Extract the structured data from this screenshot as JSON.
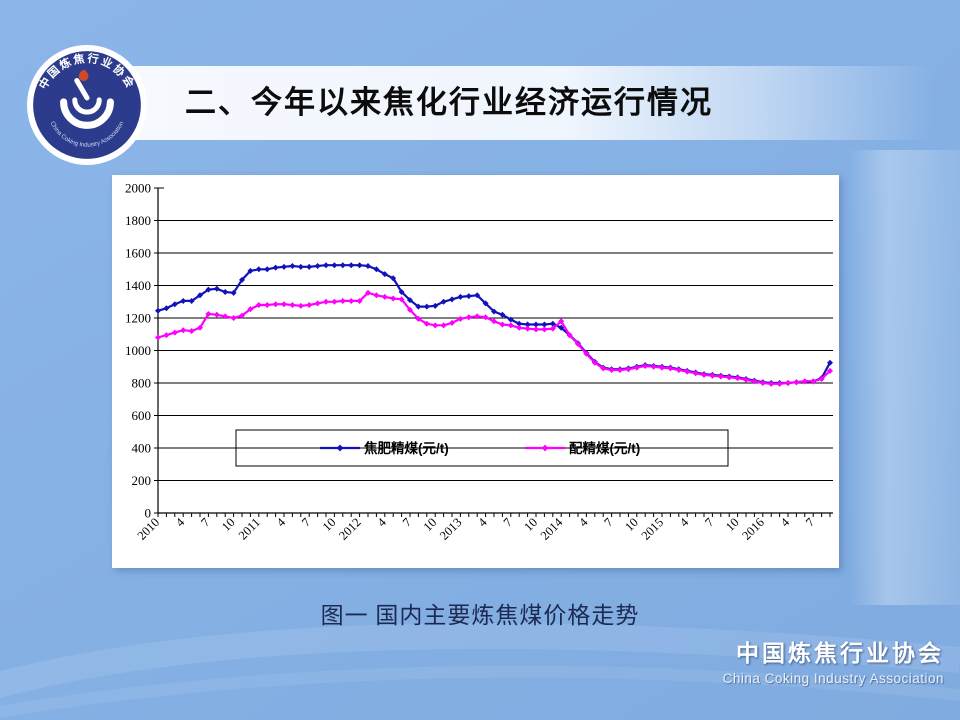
{
  "slide": {
    "title": "二、今年以来焦化行业经济运行情况",
    "caption": "图一      国内主要炼焦煤价格走势",
    "footer_cn": "中国炼焦行业协会",
    "footer_en": "China Coking Industry Association",
    "logo": {
      "text_top": "中国炼焦行业协会",
      "text_bottom": "China Coking Industry Association"
    }
  },
  "colors": {
    "slide_bg": "#85b0e4",
    "logo_navy": "#2c3b8c",
    "series_jiaofei_blue": "#1212bb",
    "series_peijing_magenta": "#ff00ff",
    "axis_black": "#000000",
    "caption_navy": "#1d2950"
  },
  "chart_data": {
    "type": "line",
    "title": "",
    "xlabel": "",
    "ylabel": "",
    "ylim": [
      0,
      2000
    ],
    "y_tick_step": 200,
    "y_tick_labels": [
      "0",
      "200",
      "400",
      "600",
      "800",
      "1000",
      "1200",
      "1400",
      "1600",
      "1800",
      "2000"
    ],
    "grid": true,
    "legend_position": "inside-bottom",
    "x_unit": "month",
    "x_months_per_label": 3,
    "x_tick_labels": [
      "2010",
      "4",
      "7",
      "10",
      "2011",
      "4",
      "7",
      "10",
      "2012",
      "4",
      "7",
      "10",
      "2013",
      "4",
      "7",
      "10",
      "2014",
      "4",
      "7",
      "10",
      "2015",
      "4",
      "7",
      "10",
      "2016",
      "4",
      "7"
    ],
    "series": [
      {
        "name": "焦肥精煤(元/t)",
        "color": "#1212bb",
        "marker": "diamond",
        "values": [
          1245,
          1260,
          1285,
          1305,
          1305,
          1340,
          1375,
          1380,
          1360,
          1355,
          1435,
          1490,
          1500,
          1500,
          1510,
          1515,
          1520,
          1515,
          1515,
          1520,
          1525,
          1525,
          1525,
          1525,
          1525,
          1520,
          1500,
          1470,
          1445,
          1360,
          1310,
          1270,
          1270,
          1275,
          1300,
          1315,
          1330,
          1335,
          1340,
          1290,
          1240,
          1220,
          1190,
          1165,
          1160,
          1160,
          1160,
          1165,
          1140,
          1095,
          1045,
          985,
          930,
          895,
          885,
          885,
          890,
          900,
          910,
          905,
          900,
          895,
          885,
          875,
          865,
          855,
          850,
          845,
          840,
          835,
          825,
          815,
          805,
          800,
          800,
          800,
          805,
          810,
          810,
          830,
          925
        ]
      },
      {
        "name": "配精煤(元/t)",
        "color": "#ff00ff",
        "marker": "diamond",
        "values": [
          1080,
          1095,
          1110,
          1125,
          1120,
          1140,
          1225,
          1220,
          1210,
          1200,
          1215,
          1255,
          1280,
          1280,
          1285,
          1285,
          1280,
          1275,
          1280,
          1290,
          1300,
          1300,
          1305,
          1305,
          1305,
          1355,
          1340,
          1330,
          1320,
          1315,
          1250,
          1195,
          1165,
          1155,
          1155,
          1170,
          1195,
          1205,
          1210,
          1205,
          1180,
          1160,
          1155,
          1140,
          1135,
          1130,
          1130,
          1135,
          1180,
          1095,
          1040,
          980,
          925,
          890,
          880,
          880,
          885,
          895,
          905,
          900,
          895,
          890,
          880,
          870,
          860,
          850,
          845,
          840,
          835,
          830,
          820,
          810,
          800,
          795,
          795,
          800,
          805,
          810,
          810,
          825,
          875
        ]
      }
    ]
  }
}
